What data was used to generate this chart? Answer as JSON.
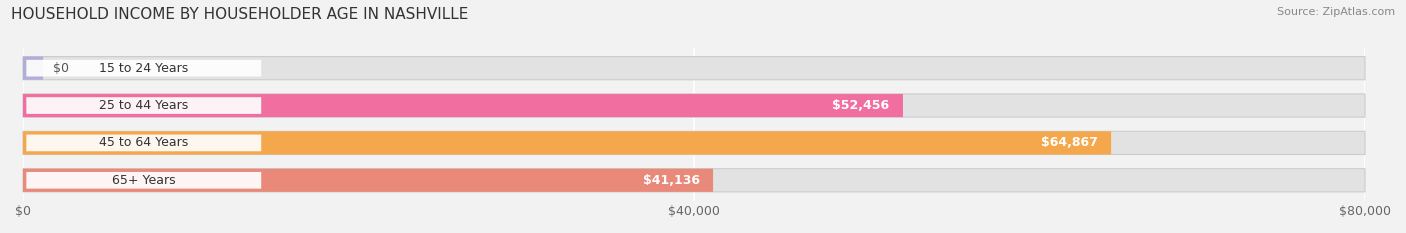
{
  "title": "HOUSEHOLD INCOME BY HOUSEHOLDER AGE IN NASHVILLE",
  "source": "Source: ZipAtlas.com",
  "categories": [
    "15 to 24 Years",
    "25 to 44 Years",
    "45 to 64 Years",
    "65+ Years"
  ],
  "values": [
    0,
    52456,
    64867,
    41136
  ],
  "value_labels": [
    "$0",
    "$52,456",
    "$64,867",
    "$41,136"
  ],
  "bar_colors": [
    "#b0aed8",
    "#f06fa0",
    "#f5a84b",
    "#e8897a"
  ],
  "background_color": "#f2f2f2",
  "bar_bg_color": "#e2e2e2",
  "label_bg_color": "#ffffff",
  "xlim": [
    0,
    80000
  ],
  "xticks": [
    0,
    40000,
    80000
  ],
  "xtick_labels": [
    "$0",
    "$40,000",
    "$80,000"
  ],
  "title_fontsize": 11,
  "tick_fontsize": 9,
  "bar_label_fontsize": 9,
  "cat_label_fontsize": 9,
  "bar_height": 0.62,
  "figsize": [
    14.06,
    2.33
  ],
  "grid_color": "#ffffff",
  "value_label_outside_color": "#555555"
}
